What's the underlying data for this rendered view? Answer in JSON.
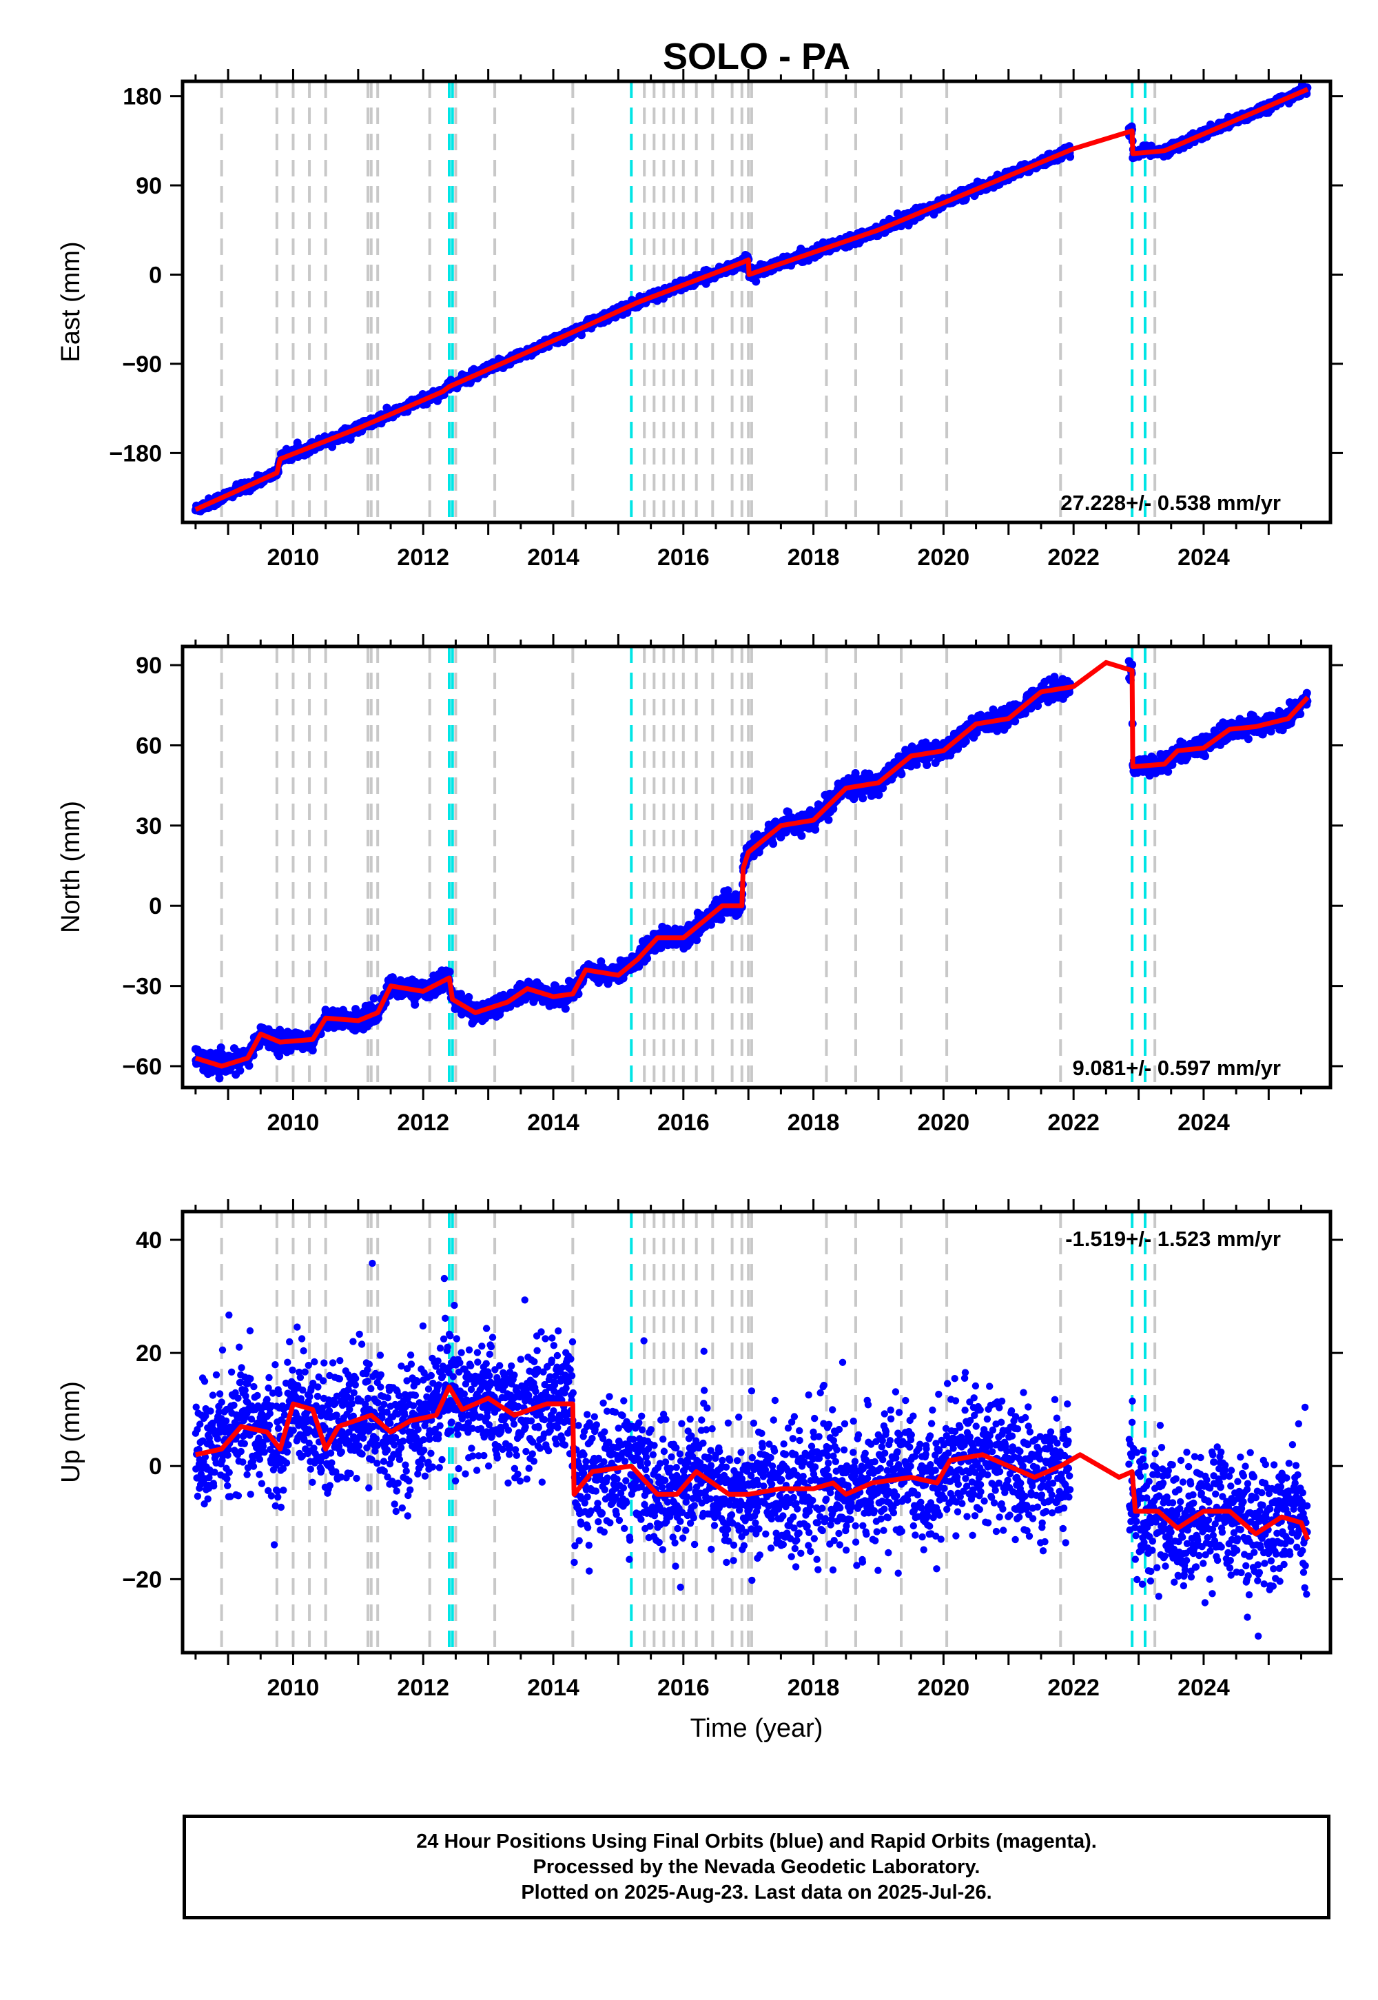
{
  "title": "SOLO - PA",
  "footer": {
    "line1": "24 Hour Positions Using Final Orbits (blue) and Rapid Orbits (magenta).",
    "line2": "Processed by the Nevada Geodetic Laboratory.",
    "line3": "Plotted on 2025-Aug-23. Last data on 2025-Jul-26."
  },
  "colors": {
    "data": "#0000ff",
    "model": "#ff0000",
    "event_gray": "#c8c8c8",
    "event_cyan": "#00e5e5"
  },
  "chart_data": [
    {
      "type": "scatter",
      "ylabel": "East (mm)",
      "xlabel": "",
      "xlim": [
        2008.3,
        2025.95
      ],
      "ylim": [
        -250,
        195
      ],
      "yticks": [
        -180,
        -90,
        0,
        90,
        180
      ],
      "xticks": [
        2010,
        2012,
        2014,
        2016,
        2018,
        2020,
        2022,
        2024
      ],
      "rate_label": "27.228+/- 0.538 mm/yr",
      "rate_position": "bottom-right",
      "model_knots": [
        [
          2008.5,
          -237
        ],
        [
          2009.75,
          -200
        ],
        [
          2009.8,
          -186
        ],
        [
          2011.0,
          -155
        ],
        [
          2012.3,
          -118
        ],
        [
          2012.4,
          -113
        ],
        [
          2014.3,
          -58
        ],
        [
          2015.3,
          -28
        ],
        [
          2016.9,
          12
        ],
        [
          2017.0,
          15
        ],
        [
          2017.01,
          0
        ],
        [
          2019.0,
          45
        ],
        [
          2022.0,
          127
        ],
        [
          2022.9,
          145
        ],
        [
          2022.91,
          122
        ],
        [
          2023.4,
          125
        ],
        [
          2025.6,
          187
        ]
      ],
      "series": [
        {
          "name": "",
          "noise": 2.5,
          "outlier_rate": 0.0
        }
      ]
    },
    {
      "type": "scatter",
      "ylabel": "North (mm)",
      "xlabel": "",
      "xlim": [
        2008.3,
        2025.95
      ],
      "ylim": [
        -68,
        97
      ],
      "yticks": [
        -60,
        -30,
        0,
        30,
        60,
        90
      ],
      "xticks": [
        2010,
        2012,
        2014,
        2016,
        2018,
        2020,
        2022,
        2024
      ],
      "rate_label": "9.081+/- 0.597 mm/yr",
      "rate_position": "bottom-right",
      "model_knots": [
        [
          2008.5,
          -57
        ],
        [
          2008.9,
          -60
        ],
        [
          2009.3,
          -57
        ],
        [
          2009.5,
          -48
        ],
        [
          2009.8,
          -51
        ],
        [
          2010.3,
          -50
        ],
        [
          2010.5,
          -42
        ],
        [
          2011.0,
          -43
        ],
        [
          2011.3,
          -40
        ],
        [
          2011.5,
          -30
        ],
        [
          2012.0,
          -32
        ],
        [
          2012.4,
          -27
        ],
        [
          2012.45,
          -35
        ],
        [
          2012.8,
          -40
        ],
        [
          2013.3,
          -36
        ],
        [
          2013.6,
          -31
        ],
        [
          2014.0,
          -34
        ],
        [
          2014.3,
          -33
        ],
        [
          2014.5,
          -24
        ],
        [
          2015.0,
          -26
        ],
        [
          2015.3,
          -20
        ],
        [
          2015.6,
          -12
        ],
        [
          2016.0,
          -12
        ],
        [
          2016.6,
          0
        ],
        [
          2016.9,
          0
        ],
        [
          2016.92,
          14
        ],
        [
          2017.0,
          20
        ],
        [
          2017.5,
          30
        ],
        [
          2018.0,
          32
        ],
        [
          2018.5,
          44
        ],
        [
          2019.0,
          46
        ],
        [
          2019.5,
          56
        ],
        [
          2020.0,
          58
        ],
        [
          2020.5,
          68
        ],
        [
          2021.0,
          70
        ],
        [
          2021.5,
          80
        ],
        [
          2022.0,
          82
        ],
        [
          2022.5,
          91
        ],
        [
          2022.9,
          88
        ],
        [
          2022.91,
          52
        ],
        [
          2023.4,
          53
        ],
        [
          2023.6,
          58
        ],
        [
          2024.0,
          59
        ],
        [
          2024.4,
          66
        ],
        [
          2024.8,
          67
        ],
        [
          2025.3,
          70
        ],
        [
          2025.6,
          78
        ]
      ],
      "series": [
        {
          "name": "",
          "noise": 1.8,
          "outlier_rate": 0.0
        }
      ]
    },
    {
      "type": "scatter",
      "ylabel": "Up (mm)",
      "xlabel": "Time (year)",
      "xlim": [
        2008.3,
        2025.95
      ],
      "ylim": [
        -33,
        45
      ],
      "yticks": [
        -20,
        0,
        20,
        40
      ],
      "xticks": [
        2010,
        2012,
        2014,
        2016,
        2018,
        2020,
        2022,
        2024
      ],
      "rate_label": "-1.519+/- 1.523 mm/yr",
      "rate_position": "top-right",
      "model_knots": [
        [
          2008.5,
          2
        ],
        [
          2008.9,
          3
        ],
        [
          2009.2,
          7
        ],
        [
          2009.6,
          6
        ],
        [
          2009.8,
          3
        ],
        [
          2010.0,
          11
        ],
        [
          2010.3,
          10
        ],
        [
          2010.5,
          3
        ],
        [
          2010.7,
          7
        ],
        [
          2011.2,
          9
        ],
        [
          2011.5,
          6
        ],
        [
          2011.8,
          8
        ],
        [
          2012.2,
          9
        ],
        [
          2012.4,
          14
        ],
        [
          2012.6,
          10
        ],
        [
          2013.0,
          12
        ],
        [
          2013.4,
          9
        ],
        [
          2013.9,
          11
        ],
        [
          2014.3,
          11
        ],
        [
          2014.32,
          -5
        ],
        [
          2014.6,
          -1
        ],
        [
          2015.2,
          0
        ],
        [
          2015.6,
          -5
        ],
        [
          2015.9,
          -5
        ],
        [
          2016.2,
          -1
        ],
        [
          2016.7,
          -5
        ],
        [
          2017.0,
          -5
        ],
        [
          2017.5,
          -4
        ],
        [
          2018.0,
          -4
        ],
        [
          2018.3,
          -3
        ],
        [
          2018.5,
          -5
        ],
        [
          2018.9,
          -3
        ],
        [
          2019.5,
          -2
        ],
        [
          2019.9,
          -3
        ],
        [
          2020.1,
          1
        ],
        [
          2020.6,
          2
        ],
        [
          2021.0,
          0
        ],
        [
          2021.4,
          -2
        ],
        [
          2021.8,
          0
        ],
        [
          2022.1,
          2
        ],
        [
          2022.4,
          0
        ],
        [
          2022.7,
          -2
        ],
        [
          2022.9,
          -1
        ],
        [
          2022.95,
          -8
        ],
        [
          2023.3,
          -8
        ],
        [
          2023.6,
          -11
        ],
        [
          2024.0,
          -8
        ],
        [
          2024.4,
          -8
        ],
        [
          2024.8,
          -12
        ],
        [
          2025.2,
          -9
        ],
        [
          2025.5,
          -10
        ],
        [
          2025.6,
          -13
        ]
      ],
      "series": [
        {
          "name": "",
          "noise": 5.5,
          "outlier_rate": 0.01
        }
      ]
    }
  ],
  "events": {
    "gray": [
      2008.9,
      2009.75,
      2010.0,
      2010.25,
      2010.5,
      2011.15,
      2011.2,
      2011.3,
      2012.1,
      2012.5,
      2013.1,
      2014.3,
      2015.4,
      2015.55,
      2015.7,
      2015.85,
      2016.0,
      2016.2,
      2016.45,
      2016.75,
      2016.9,
      2017.0,
      2017.05,
      2018.2,
      2018.65,
      2019.35,
      2020.05,
      2021.8,
      2023.25
    ],
    "cyan": [
      2012.4,
      2012.45,
      2015.2,
      2022.9,
      2023.1
    ]
  }
}
